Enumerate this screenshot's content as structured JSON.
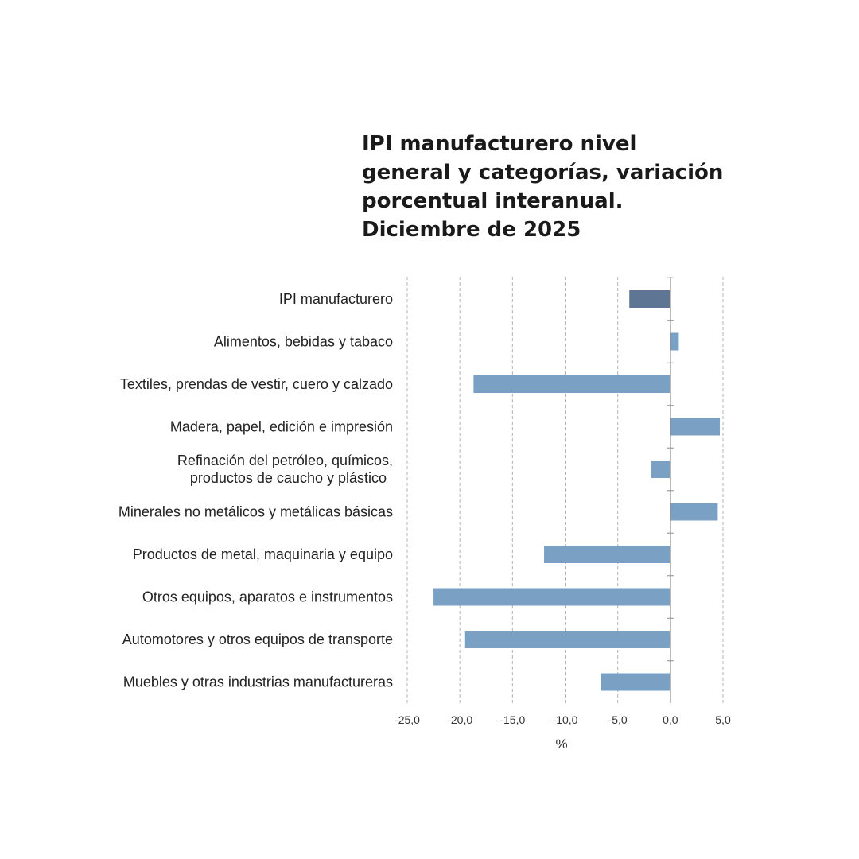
{
  "chart_data": {
    "type": "bar",
    "orientation": "horizontal",
    "title": "IPI manufacturero nivel\ngeneral y categorías, variación\nporcentual interanual.\nDiciembre de 2025",
    "xlabel": "%",
    "ylabel": "",
    "xlim": [
      -25,
      5
    ],
    "x_ticks": [
      "-25,0",
      "-20,0",
      "-15,0",
      "-10,0",
      "-5,0",
      "0,0",
      "5,0"
    ],
    "x_tick_values": [
      -25,
      -20,
      -15,
      -10,
      -5,
      0,
      5
    ],
    "grid": "vertical dashed",
    "categories": [
      "IPI manufacturero",
      "Alimentos, bebidas y tabaco",
      "Textiles, prendas de vestir, cuero y calzado",
      "Madera, papel, edición e impresión",
      "Refinación del petróleo, químicos,\nproductos de caucho y plástico",
      "Minerales no metálicos y metálicas básicas",
      "Productos de metal, maquinaria y equipo",
      "Otros equipos, aparatos e instrumentos",
      "Automotores y otros equipos de transporte",
      "Muebles y otras industrias manufactureras"
    ],
    "values": [
      -3.9,
      0.8,
      -18.7,
      4.7,
      -1.8,
      4.5,
      -12.0,
      -22.5,
      -19.5,
      -6.6
    ],
    "colors": {
      "highlight": "#5e7694",
      "bar": "#7aa1c4",
      "grid": "#b3b3b3",
      "axis": "#8c8c8c"
    },
    "highlight_index": 0
  }
}
